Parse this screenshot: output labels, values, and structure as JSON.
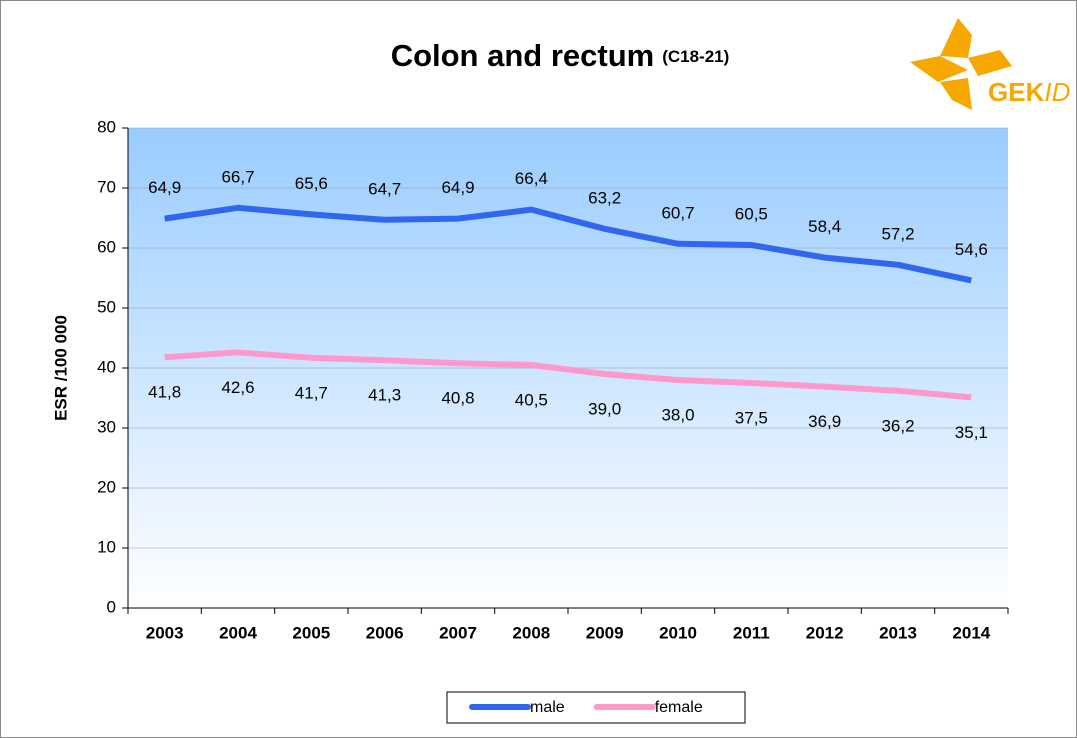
{
  "chart_data": {
    "type": "line",
    "title": "Colon and rectum",
    "subtitle": "(C18-21)",
    "logo": [
      "GEK",
      "ID"
    ],
    "y_label": "ESR /100 000",
    "categories": [
      "2003",
      "2004",
      "2005",
      "2006",
      "2007",
      "2008",
      "2009",
      "2010",
      "2011",
      "2012",
      "2013",
      "2014"
    ],
    "series": [
      {
        "name": "male",
        "color": "#3366ee",
        "values": [
          64.9,
          66.7,
          65.6,
          64.7,
          64.9,
          66.4,
          63.2,
          60.7,
          60.5,
          58.4,
          57.2,
          54.6
        ],
        "value_labels": [
          "64,9",
          "66,7",
          "65,6",
          "64,7",
          "64,9",
          "66,4",
          "63,2",
          "60,7",
          "60,5",
          "58,4",
          "57,2",
          "54,6"
        ]
      },
      {
        "name": "female",
        "color": "#ff99cc",
        "values": [
          41.8,
          42.6,
          41.7,
          41.3,
          40.8,
          40.5,
          39.0,
          38.0,
          37.5,
          36.9,
          36.2,
          35.1
        ],
        "value_labels": [
          "41,8",
          "42,6",
          "41,7",
          "41,3",
          "40,8",
          "40,5",
          "39,0",
          "38,0",
          "37,5",
          "36,9",
          "36,2",
          "35,1"
        ]
      }
    ],
    "ylim": [
      0,
      80
    ],
    "yticks": [
      0,
      10,
      20,
      30,
      40,
      50,
      60,
      70,
      80
    ],
    "grid": true,
    "legend": "bottom"
  }
}
